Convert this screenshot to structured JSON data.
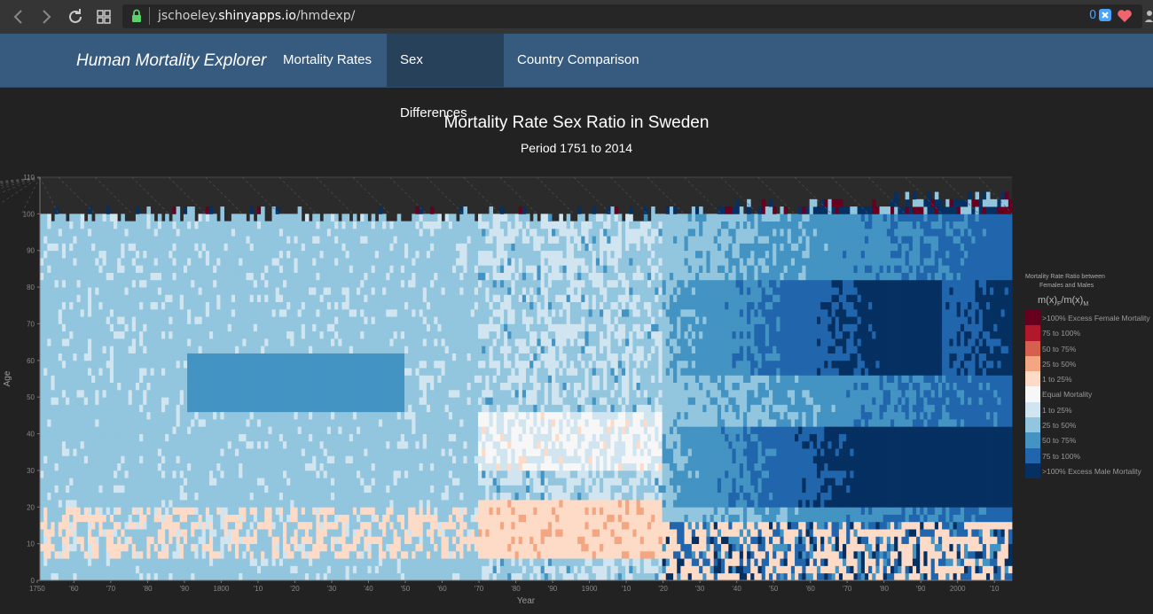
{
  "browser": {
    "url_prefix": "jschoeley.",
    "url_domain": "shinyapps.io",
    "url_path": "/hmdexp/",
    "extension_count": "0",
    "icons": [
      "back-icon",
      "forward-icon",
      "reload-icon",
      "grid-icon",
      "lock-icon",
      "extension-icon",
      "heart-icon",
      "profile-icon"
    ]
  },
  "navbar": {
    "brand": "Human Mortality Explorer",
    "tabs": [
      {
        "label": "Mortality Rates",
        "active": false
      },
      {
        "label": "Sex Differences",
        "active": true
      },
      {
        "label": "Country Comparison",
        "active": false
      }
    ]
  },
  "colors": {
    "navbar_bg": "#375a7f",
    "navbar_active": "#28415b",
    "page_bg": "#222222"
  },
  "chart_data": {
    "type": "heatmap",
    "title": "Mortality Rate Sex Ratio in Sweden",
    "subtitle": "Period 1751 to 2014",
    "xlabel": "Year",
    "ylabel": "Age",
    "xlim": [
      1751,
      2014
    ],
    "ylim": [
      0,
      110
    ],
    "x_ticks": [
      "1750",
      "'60",
      "'70",
      "'80",
      "'90",
      "1800",
      "'10",
      "'20",
      "'30",
      "'40",
      "'50",
      "'60",
      "'70",
      "'80",
      "'90",
      "1900",
      "'10",
      "'20",
      "'30",
      "'40",
      "'50",
      "'60",
      "'70",
      "'80",
      "'90",
      "2000",
      "'10"
    ],
    "y_ticks": [
      "0",
      "10",
      "20",
      "30",
      "40",
      "50",
      "60",
      "70",
      "80",
      "90",
      "100",
      "110"
    ],
    "legend": {
      "title_line1": "Mortality Rate Ratio between",
      "title_line2": "Females and Males",
      "formula": "m(x)F/m(x)M",
      "placement": "right",
      "items": [
        {
          "label": ">100% Excess Female Mortality",
          "color": "#67001f"
        },
        {
          "label": "75 to 100%",
          "color": "#b2182b"
        },
        {
          "label": "50 to 75%",
          "color": "#d6604d"
        },
        {
          "label": "25 to 50%",
          "color": "#f4a582"
        },
        {
          "label": "1 to 25%",
          "color": "#fddbc7"
        },
        {
          "label": "Equal Mortality",
          "color": "#f7f7f7"
        },
        {
          "label": "1 to 25%",
          "color": "#d1e5f0"
        },
        {
          "label": "25 to 50%",
          "color": "#92c5de"
        },
        {
          "label": "50 to 75%",
          "color": "#4393c3"
        },
        {
          "label": "75 to 100%",
          "color": "#2166ac"
        },
        {
          "label": ">100% Excess Male Mortality",
          "color": "#053061"
        }
      ]
    }
  }
}
